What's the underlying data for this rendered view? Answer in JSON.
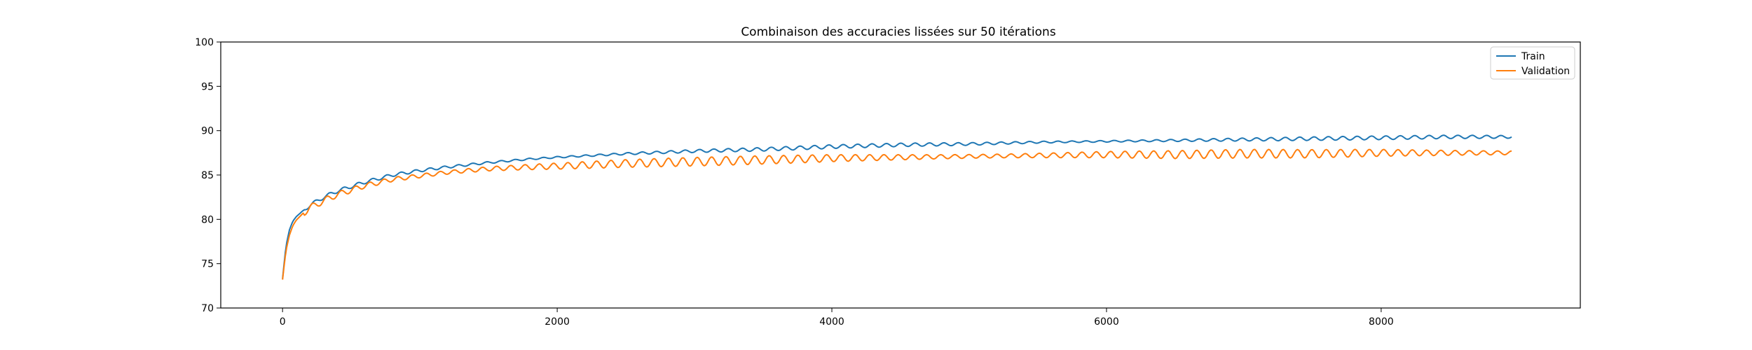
{
  "chart_data": {
    "type": "line",
    "title": "Combinaison des accuracies lissées sur 50 itérations",
    "xlabel": "",
    "ylabel": "",
    "xlim": [
      -450,
      9450
    ],
    "ylim": [
      70,
      100
    ],
    "xticks": [
      0,
      2000,
      4000,
      6000,
      8000
    ],
    "xtick_labels": [
      "0",
      "2000",
      "4000",
      "6000",
      "8000"
    ],
    "yticks": [
      70,
      75,
      80,
      85,
      90,
      95,
      100
    ],
    "ytick_labels": [
      "70",
      "75",
      "80",
      "85",
      "90",
      "95",
      "100"
    ],
    "grid": false,
    "legend_position": "top-right",
    "x": [
      0,
      25,
      50,
      75,
      100,
      150,
      200,
      300,
      400,
      500,
      600,
      800,
      1000,
      1200,
      1500,
      1800,
      2000,
      2500,
      3000,
      3500,
      4000,
      4500,
      5000,
      5500,
      6000,
      6500,
      7000,
      7500,
      8000,
      8500,
      8950
    ],
    "series": [
      {
        "name": "Train",
        "color": "#1f77b4",
        "values": [
          73.3,
          77.0,
          78.8,
          79.8,
          80.3,
          81.0,
          81.6,
          82.5,
          83.2,
          83.7,
          84.2,
          85.0,
          85.5,
          85.9,
          86.4,
          86.8,
          87.0,
          87.4,
          87.7,
          87.9,
          88.2,
          88.4,
          88.5,
          88.7,
          88.8,
          88.9,
          89.0,
          89.1,
          89.2,
          89.3,
          89.3
        ],
        "wiggle": 0.15
      },
      {
        "name": "Validation",
        "color": "#ff7f0e",
        "values": [
          73.2,
          76.5,
          78.2,
          79.3,
          79.9,
          80.7,
          81.3,
          82.1,
          82.8,
          83.3,
          83.8,
          84.5,
          84.9,
          85.3,
          85.7,
          85.9,
          86.0,
          86.3,
          86.5,
          86.7,
          86.9,
          87.0,
          87.1,
          87.2,
          87.3,
          87.3,
          87.4,
          87.4,
          87.5,
          87.5,
          87.5
        ],
        "wiggle": 0.35
      }
    ]
  }
}
